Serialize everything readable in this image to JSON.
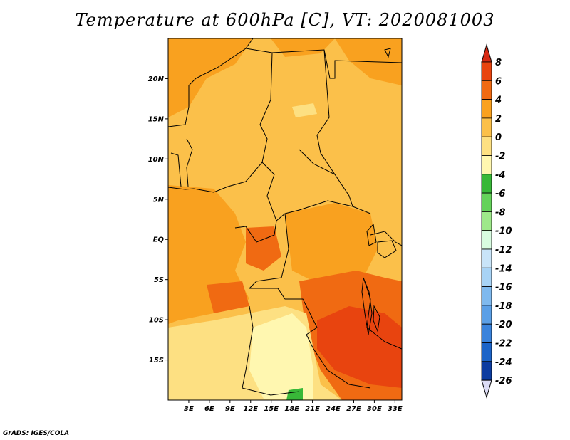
{
  "title": "Temperature at 600hPa [C], VT: 2020081003",
  "credit": "GrADS: IGES/COLA",
  "map": {
    "lon_range": [
      0,
      34
    ],
    "lat_range": [
      -20,
      25
    ],
    "lat_ticks": [
      {
        "value": 20,
        "label": "20N"
      },
      {
        "value": 15,
        "label": "15N"
      },
      {
        "value": 10,
        "label": "10N"
      },
      {
        "value": 5,
        "label": "5N"
      },
      {
        "value": 0,
        "label": "EQ"
      },
      {
        "value": -5,
        "label": "5S"
      },
      {
        "value": -10,
        "label": "10S"
      },
      {
        "value": -15,
        "label": "15S"
      }
    ],
    "lon_ticks": [
      {
        "value": 3,
        "label": "3E"
      },
      {
        "value": 6,
        "label": "6E"
      },
      {
        "value": 9,
        "label": "9E"
      },
      {
        "value": 12,
        "label": "12E"
      },
      {
        "value": 15,
        "label": "15E"
      },
      {
        "value": 18,
        "label": "18E"
      },
      {
        "value": 21,
        "label": "21E"
      },
      {
        "value": 24,
        "label": "24E"
      },
      {
        "value": 27,
        "label": "27E"
      },
      {
        "value": 30,
        "label": "30E"
      },
      {
        "value": 33,
        "label": "33E"
      }
    ]
  },
  "colorbar": {
    "labels": [
      "8",
      "6",
      "4",
      "2",
      "0",
      "-2",
      "-4",
      "-6",
      "-8",
      "-10",
      "-12",
      "-14",
      "-16",
      "-18",
      "-20",
      "-22",
      "-24",
      "-26"
    ],
    "top_color": "#d72a14",
    "bottom_color": "#dcdcf5",
    "colors": [
      "#e8440f",
      "#f06a12",
      "#f9a11f",
      "#fbc04a",
      "#fde082",
      "#fff7b0",
      "#38b838",
      "#64d25a",
      "#9ee88a",
      "#d8fbe0",
      "#c9e4f8",
      "#a8d3f5",
      "#7fb9ee",
      "#5b9fe6",
      "#3a83dc",
      "#1c64c8",
      "#0c3ca0",
      "#061a66"
    ]
  }
}
